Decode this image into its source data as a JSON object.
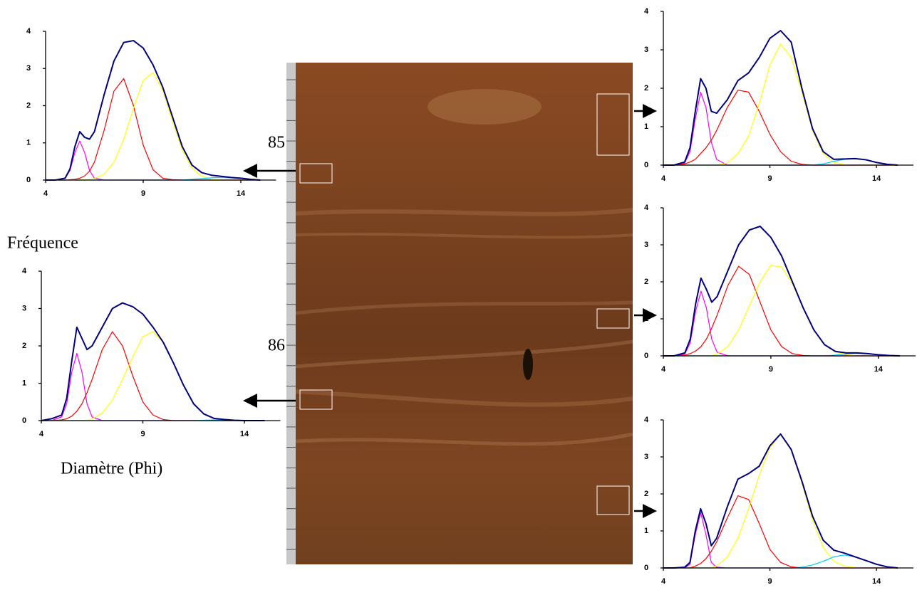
{
  "figure": {
    "y_label": "Fréquence",
    "x_label": "Diamètre (Phi)",
    "depth_labels": [
      85,
      86
    ]
  },
  "chart_data": [
    {
      "type": "line",
      "xlim": [
        4,
        15
      ],
      "ylim": [
        0,
        4
      ],
      "xticks": [
        4,
        9,
        14
      ],
      "yticks": [
        0,
        1,
        2,
        3,
        4
      ],
      "x": [
        4,
        4.5,
        5,
        5.25,
        5.5,
        5.75,
        6,
        6.25,
        6.5,
        7,
        7.5,
        8,
        8.5,
        9,
        9.5,
        10,
        10.5,
        11,
        11.5,
        12,
        12.5,
        13,
        13.5,
        14,
        14.5,
        15
      ],
      "series": [
        {
          "color": "#ff00ff",
          "values": [
            0,
            0,
            0.05,
            0.26,
            0.74,
            1.05,
            0.74,
            0.26,
            0.05,
            0,
            0,
            0,
            0,
            0,
            0,
            0,
            0,
            0,
            0,
            0,
            0,
            0,
            0,
            0,
            0,
            0
          ]
        },
        {
          "color": "#ff0000",
          "values": [
            0,
            0,
            0,
            0.01,
            0.02,
            0.05,
            0.11,
            0.24,
            0.48,
            1.34,
            2.39,
            2.73,
            2.0,
            0.94,
            0.28,
            0.05,
            0.01,
            0,
            0,
            0,
            0,
            0,
            0,
            0,
            0,
            0
          ]
        },
        {
          "color": "#ffff00",
          "values": [
            0,
            0,
            0,
            0,
            0,
            0,
            0.01,
            0.02,
            0.04,
            0.16,
            0.48,
            1.09,
            1.93,
            2.68,
            2.89,
            2.42,
            1.58,
            0.81,
            0.32,
            0.1,
            0.02,
            0,
            0,
            0,
            0,
            0
          ]
        },
        {
          "color": "#00ccff",
          "values": [
            0,
            0,
            0,
            0,
            0,
            0,
            0,
            0,
            0,
            0,
            0,
            0,
            0,
            0,
            0,
            0,
            0,
            0,
            0.02,
            0.04,
            0.06,
            0.07,
            0.06,
            0.04,
            0.02,
            0
          ]
        },
        {
          "color": "#000080",
          "values": [
            0,
            0,
            0.05,
            0.3,
            0.9,
            1.3,
            1.15,
            1.1,
            1.3,
            2.3,
            3.2,
            3.7,
            3.75,
            3.55,
            3.1,
            2.5,
            1.7,
            0.9,
            0.4,
            0.2,
            0.13,
            0.1,
            0.07,
            0.05,
            0.02,
            0
          ]
        }
      ]
    },
    {
      "type": "line",
      "xlim": [
        4,
        15
      ],
      "ylim": [
        0,
        4
      ],
      "xticks": [
        4,
        9,
        14
      ],
      "yticks": [
        0,
        1,
        2,
        3,
        4
      ],
      "x": [
        4,
        4.5,
        5,
        5.25,
        5.5,
        5.75,
        6,
        6.25,
        6.5,
        7,
        7.5,
        8,
        8.5,
        9,
        9.5,
        10,
        10.5,
        11,
        11.5,
        12,
        12.5,
        13,
        13.5,
        14,
        14.5,
        15
      ],
      "series": [
        {
          "color": "#ff00ff",
          "values": [
            0,
            0,
            0.1,
            0.45,
            1.3,
            1.8,
            1.3,
            0.45,
            0.1,
            0,
            0,
            0,
            0,
            0,
            0,
            0,
            0,
            0,
            0,
            0,
            0,
            0,
            0,
            0,
            0,
            0
          ]
        },
        {
          "color": "#ff0000",
          "values": [
            0,
            0,
            0.02,
            0.05,
            0.12,
            0.25,
            0.45,
            0.75,
            1.1,
            1.9,
            2.38,
            2.0,
            1.2,
            0.5,
            0.15,
            0.03,
            0,
            0,
            0,
            0,
            0,
            0,
            0,
            0,
            0,
            0
          ]
        },
        {
          "color": "#ffff00",
          "values": [
            0,
            0,
            0,
            0,
            0,
            0,
            0,
            0,
            0.05,
            0.2,
            0.55,
            1.1,
            1.7,
            2.25,
            2.38,
            2.1,
            1.55,
            0.95,
            0.45,
            0.18,
            0.06,
            0.02,
            0,
            0,
            0,
            0
          ]
        },
        {
          "color": "#00ccff",
          "values": [
            0,
            0,
            0,
            0,
            0,
            0,
            0,
            0,
            0,
            0,
            0,
            0,
            0,
            0,
            0,
            0,
            0,
            0,
            0,
            0.01,
            0.02,
            0.02,
            0.01,
            0,
            0,
            0
          ]
        },
        {
          "color": "#000080",
          "values": [
            0,
            0.05,
            0.15,
            0.6,
            1.6,
            2.5,
            2.2,
            1.9,
            2.0,
            2.5,
            3.0,
            3.15,
            3.05,
            2.85,
            2.5,
            2.1,
            1.55,
            0.95,
            0.45,
            0.18,
            0.06,
            0.03,
            0.01,
            0,
            0,
            0
          ]
        }
      ]
    },
    {
      "type": "line",
      "xlim": [
        4,
        15
      ],
      "ylim": [
        0,
        4
      ],
      "xticks": [
        4,
        9,
        14
      ],
      "yticks": [
        0,
        1,
        2,
        3,
        4
      ],
      "x": [
        4,
        4.5,
        5,
        5.25,
        5.5,
        5.75,
        6,
        6.25,
        6.5,
        7,
        7.5,
        8,
        8.5,
        9,
        9.5,
        10,
        10.5,
        11,
        11.5,
        12,
        12.5,
        13,
        13.5,
        14,
        14.5,
        15
      ],
      "series": [
        {
          "color": "#ff00ff",
          "values": [
            0,
            0,
            0.05,
            0.35,
            1.2,
            1.9,
            1.5,
            0.6,
            0.15,
            0,
            0,
            0,
            0,
            0,
            0,
            0,
            0,
            0,
            0,
            0,
            0,
            0,
            0,
            0,
            0,
            0
          ]
        },
        {
          "color": "#ff0000",
          "values": [
            0,
            0,
            0.03,
            0.08,
            0.15,
            0.3,
            0.45,
            0.65,
            0.9,
            1.5,
            1.95,
            1.9,
            1.4,
            0.8,
            0.35,
            0.1,
            0.02,
            0,
            0,
            0,
            0,
            0,
            0,
            0,
            0,
            0
          ]
        },
        {
          "color": "#ffff00",
          "values": [
            0,
            0,
            0,
            0,
            0,
            0,
            0,
            0,
            0,
            0.05,
            0.3,
            0.75,
            1.6,
            2.6,
            3.15,
            2.8,
            1.9,
            0.9,
            0.3,
            0.07,
            0.01,
            0,
            0,
            0,
            0,
            0
          ]
        },
        {
          "color": "#00ccff",
          "values": [
            0,
            0,
            0,
            0,
            0,
            0,
            0,
            0,
            0,
            0,
            0,
            0,
            0,
            0,
            0,
            0,
            0,
            0,
            0.03,
            0.1,
            0.15,
            0.17,
            0.14,
            0.07,
            0.02,
            0
          ]
        },
        {
          "color": "#000080",
          "values": [
            0,
            0,
            0.08,
            0.45,
            1.4,
            2.25,
            2.0,
            1.4,
            1.35,
            1.7,
            2.2,
            2.4,
            2.8,
            3.3,
            3.5,
            3.2,
            2.0,
            0.95,
            0.35,
            0.15,
            0.16,
            0.17,
            0.14,
            0.07,
            0.02,
            0
          ]
        }
      ]
    },
    {
      "type": "line",
      "xlim": [
        4,
        15
      ],
      "ylim": [
        0,
        4
      ],
      "xticks": [
        4,
        9,
        14
      ],
      "yticks": [
        0,
        1,
        2,
        3,
        4
      ],
      "x": [
        4,
        4.5,
        5,
        5.25,
        5.5,
        5.75,
        6,
        6.25,
        6.5,
        7,
        7.5,
        8,
        8.5,
        9,
        9.5,
        10,
        10.5,
        11,
        11.5,
        12,
        12.5,
        13,
        13.5,
        14,
        14.5,
        15
      ],
      "series": [
        {
          "color": "#ff00ff",
          "values": [
            0,
            0,
            0.05,
            0.35,
            1.2,
            1.75,
            1.3,
            0.45,
            0.1,
            0,
            0,
            0,
            0,
            0,
            0,
            0,
            0,
            0,
            0,
            0,
            0,
            0,
            0,
            0,
            0,
            0
          ]
        },
        {
          "color": "#ff0000",
          "values": [
            0,
            0,
            0.02,
            0.06,
            0.13,
            0.25,
            0.45,
            0.75,
            1.1,
            1.9,
            2.42,
            2.2,
            1.45,
            0.7,
            0.25,
            0.06,
            0.01,
            0,
            0,
            0,
            0,
            0,
            0,
            0,
            0,
            0
          ]
        },
        {
          "color": "#ffff00",
          "values": [
            0,
            0,
            0,
            0,
            0,
            0,
            0,
            0,
            0.05,
            0.25,
            0.7,
            1.35,
            2.0,
            2.45,
            2.4,
            1.95,
            1.3,
            0.7,
            0.3,
            0.1,
            0.03,
            0,
            0,
            0,
            0,
            0
          ]
        },
        {
          "color": "#00ccff",
          "values": [
            0,
            0,
            0,
            0,
            0,
            0,
            0,
            0,
            0,
            0,
            0,
            0,
            0,
            0,
            0,
            0,
            0,
            0,
            0,
            0.02,
            0.05,
            0.07,
            0.06,
            0.03,
            0.01,
            0
          ]
        },
        {
          "color": "#000080",
          "values": [
            0,
            0,
            0.08,
            0.45,
            1.4,
            2.1,
            1.8,
            1.45,
            1.6,
            2.3,
            3.0,
            3.4,
            3.5,
            3.2,
            2.7,
            2.0,
            1.3,
            0.7,
            0.3,
            0.12,
            0.08,
            0.08,
            0.06,
            0.03,
            0.01,
            0
          ]
        }
      ]
    },
    {
      "type": "line",
      "xlim": [
        4,
        15
      ],
      "ylim": [
        0,
        4
      ],
      "xticks": [
        4,
        9,
        14
      ],
      "yticks": [
        0,
        1,
        2,
        3,
        4
      ],
      "x": [
        4,
        4.5,
        5,
        5.25,
        5.5,
        5.75,
        6,
        6.25,
        6.5,
        7,
        7.5,
        8,
        8.5,
        9,
        9.5,
        10,
        10.5,
        11,
        11.5,
        12,
        12.5,
        13,
        13.5,
        14,
        14.5,
        15
      ],
      "series": [
        {
          "color": "#ff00ff",
          "values": [
            0,
            0,
            0,
            0.1,
            0.9,
            1.5,
            0.9,
            0.15,
            0.02,
            0,
            0,
            0,
            0,
            0,
            0,
            0,
            0,
            0,
            0,
            0,
            0,
            0,
            0,
            0,
            0,
            0
          ]
        },
        {
          "color": "#ff0000",
          "values": [
            0,
            0,
            0,
            0,
            0.05,
            0.12,
            0.25,
            0.45,
            0.7,
            1.35,
            1.95,
            1.85,
            1.2,
            0.5,
            0.15,
            0.03,
            0,
            0,
            0,
            0,
            0,
            0,
            0,
            0,
            0,
            0
          ]
        },
        {
          "color": "#ffff00",
          "values": [
            0,
            0,
            0,
            0,
            0,
            0,
            0,
            0,
            0.05,
            0.3,
            0.8,
            1.6,
            2.5,
            3.25,
            3.6,
            3.2,
            2.3,
            1.3,
            0.55,
            0.18,
            0.05,
            0.01,
            0,
            0,
            0,
            0
          ]
        },
        {
          "color": "#00ccff",
          "values": [
            0,
            0,
            0,
            0,
            0,
            0,
            0,
            0,
            0,
            0,
            0,
            0,
            0,
            0,
            0,
            0,
            0.02,
            0.08,
            0.18,
            0.3,
            0.35,
            0.3,
            0.2,
            0.1,
            0.03,
            0
          ]
        },
        {
          "color": "#000080",
          "values": [
            0,
            0,
            0.02,
            0.15,
            1.0,
            1.6,
            1.2,
            0.6,
            0.8,
            1.65,
            2.4,
            2.55,
            2.75,
            3.3,
            3.62,
            3.2,
            2.35,
            1.4,
            0.75,
            0.48,
            0.4,
            0.3,
            0.2,
            0.1,
            0.03,
            0
          ]
        }
      ]
    }
  ]
}
